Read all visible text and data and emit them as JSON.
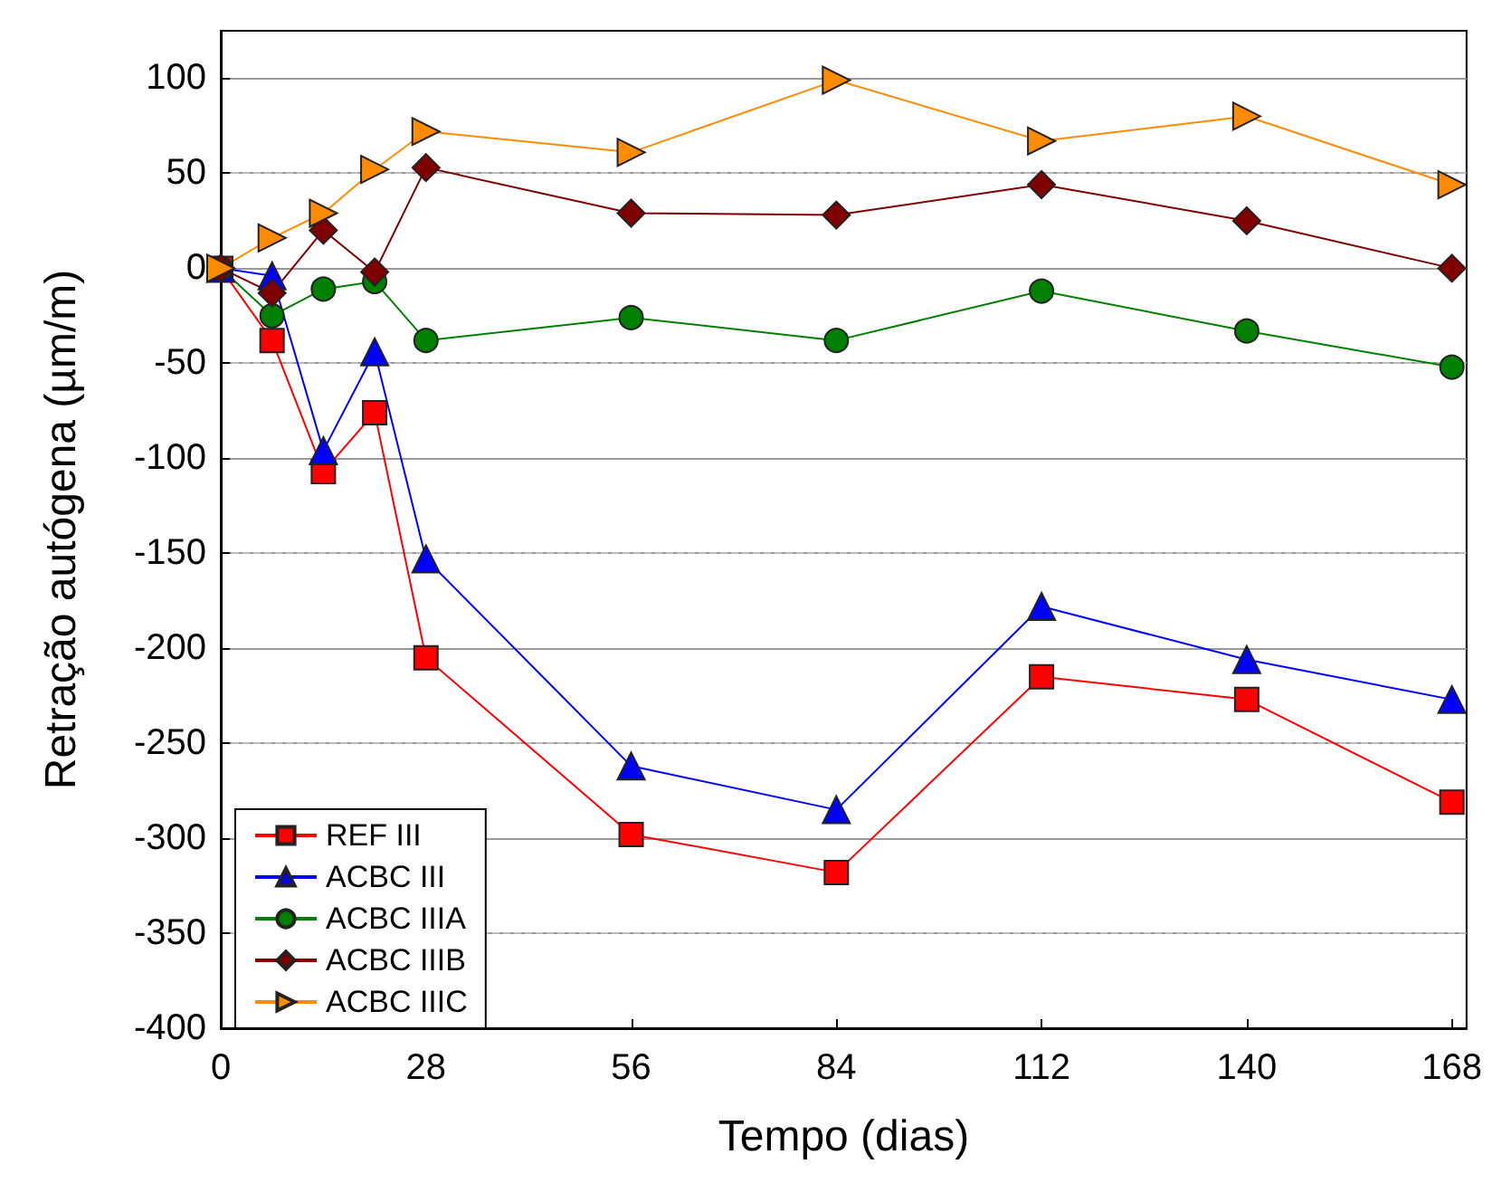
{
  "chart_data": {
    "type": "line",
    "xlabel": "Tempo (dias)",
    "ylabel": "Retração autógena (µm/m)",
    "xlim": [
      0,
      170
    ],
    "xticks": [
      0,
      28,
      56,
      84,
      112,
      140,
      168
    ],
    "ylim": [
      -400,
      125
    ],
    "yticks": [
      -400,
      -350,
      -300,
      -250,
      -200,
      -150,
      -100,
      -50,
      0,
      50,
      100
    ],
    "grid": "y",
    "legend": "bottom left",
    "line_style": "solid",
    "x": [
      0,
      7,
      14,
      21,
      28,
      56,
      84,
      112,
      140,
      168
    ],
    "series": [
      {
        "name": "REF III",
        "color": "#ff0000",
        "marker": "square",
        "values": [
          0,
          -38,
          -107,
          -76,
          -205,
          -298,
          -318,
          -215,
          -227,
          -281
        ]
      },
      {
        "name": "ACBC III",
        "color": "#0000ff",
        "marker": "triangle",
        "values": [
          0,
          -4,
          -96,
          -44,
          -153,
          -262,
          -285,
          -178,
          -206,
          -227
        ]
      },
      {
        "name": "ACBC IIIA",
        "color": "#008000",
        "marker": "circle",
        "values": [
          0,
          -25,
          -11,
          -7,
          -38,
          -26,
          -38,
          -12,
          -33,
          -52
        ]
      },
      {
        "name": "ACBC IIIB",
        "color": "#800000",
        "marker": "diamond",
        "values": [
          0,
          -13,
          20,
          -2,
          53,
          29,
          28,
          44,
          25,
          0
        ]
      },
      {
        "name": "ACBC IIIC",
        "color": "#ff8c00",
        "marker": "triangle-right",
        "values": [
          0,
          16,
          29,
          52,
          72,
          61,
          99,
          67,
          80,
          44
        ]
      }
    ]
  }
}
